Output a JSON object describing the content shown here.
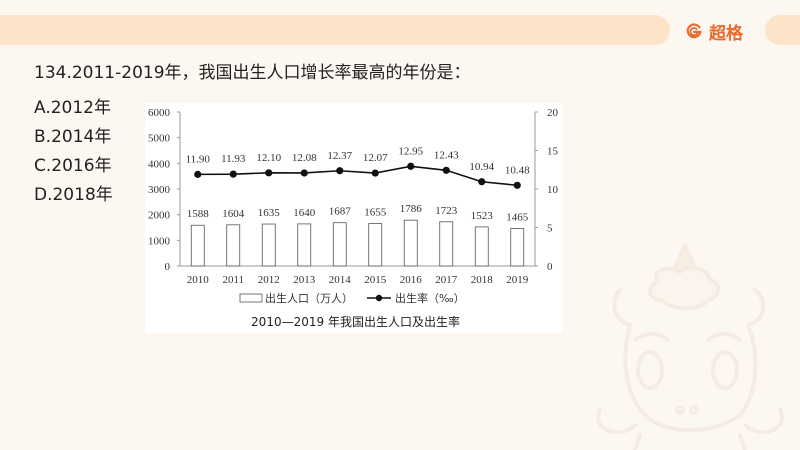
{
  "header": {
    "brand_name": "超格",
    "brand_icon": "g-logo-icon",
    "accent_color": "#e86a2c",
    "bar_color": "#fde3c8"
  },
  "question": {
    "text": "134.2011-2019年，我国出生人口增长率最高的年份是：",
    "options": [
      {
        "label": "A.2012年"
      },
      {
        "label": "B.2014年"
      },
      {
        "label": "C.2016年"
      },
      {
        "label": "D.2018年"
      }
    ]
  },
  "chart_data": {
    "type": "bar+line",
    "title": "2010—2019 年我国出生人口及出生率",
    "categories": [
      "2010",
      "2011",
      "2012",
      "2013",
      "2014",
      "2015",
      "2016",
      "2017",
      "2018",
      "2019"
    ],
    "series": [
      {
        "name": "出生人口（万人）",
        "type": "bar",
        "axis": "left",
        "values": [
          1588,
          1604,
          1635,
          1640,
          1687,
          1655,
          1786,
          1723,
          1523,
          1465
        ],
        "labels": [
          "1588",
          "1604",
          "1635",
          "1640",
          "1687",
          "1655",
          "1786",
          "1723",
          "1523",
          "1465"
        ]
      },
      {
        "name": "出生率（‰）",
        "type": "line",
        "axis": "right",
        "values": [
          11.9,
          11.93,
          12.1,
          12.08,
          12.37,
          12.07,
          12.95,
          12.43,
          10.94,
          10.48
        ],
        "labels": [
          "11.90",
          "11.93",
          "12.10",
          "12.08",
          "12.37",
          "12.07",
          "12.95",
          "12.43",
          "10.94",
          "10.48"
        ]
      }
    ],
    "left_axis": {
      "min": 0,
      "max": 6000,
      "ticks": [
        "0",
        "1000",
        "2000",
        "3000",
        "4000",
        "5000",
        "6000"
      ]
    },
    "right_axis": {
      "min": 0,
      "max": 20,
      "ticks": [
        "0",
        "5",
        "10",
        "15",
        "20"
      ]
    },
    "legend": {
      "position": "bottom",
      "entries": [
        "出生人口（万人）",
        "出生率（‰）"
      ]
    },
    "grid": false
  }
}
